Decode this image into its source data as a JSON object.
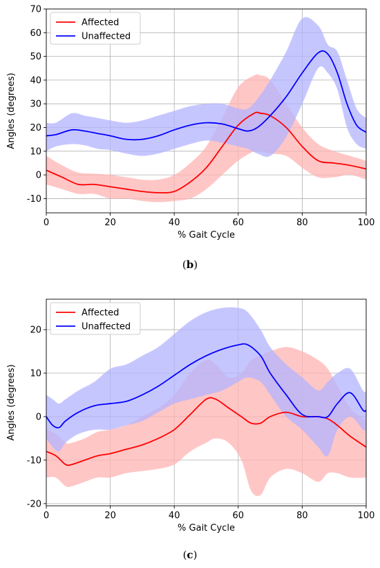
{
  "chart_data": [
    {
      "type": "line",
      "caption": "b",
      "xlabel": "% Gait Cycle",
      "ylabel": "Angles (degrees)",
      "xlim": [
        0,
        100
      ],
      "ylim": [
        -16,
        70
      ],
      "xticks": [
        0,
        20,
        40,
        60,
        80,
        100
      ],
      "yticks": [
        -10,
        0,
        10,
        20,
        30,
        40,
        50,
        60,
        70
      ],
      "grid": true,
      "legend": "top-left",
      "series": [
        {
          "name": "Affected",
          "color": "#ff0000",
          "band_color": "#ffb3b3",
          "x": [
            0,
            5,
            10,
            15,
            20,
            25,
            30,
            35,
            40,
            45,
            50,
            55,
            60,
            65,
            67,
            70,
            75,
            80,
            85,
            90,
            95,
            100
          ],
          "mean": [
            2,
            -1,
            -4,
            -4,
            -5,
            -6,
            -7,
            -7.5,
            -7,
            -3,
            3,
            12,
            21,
            26,
            26,
            25,
            20,
            12,
            6,
            5,
            4,
            2.5
          ],
          "upper": [
            8,
            4,
            1,
            0.5,
            0,
            -1,
            -2,
            -2,
            0,
            5,
            12,
            24,
            37,
            42,
            42,
            40,
            30,
            20,
            13,
            10,
            8,
            6
          ],
          "lower": [
            -4,
            -6,
            -8,
            -8,
            -10,
            -10,
            -11,
            -11.5,
            -11,
            -10,
            -6,
            0,
            6,
            10,
            10,
            9,
            8,
            3,
            -1,
            -1,
            0,
            -2
          ]
        },
        {
          "name": "Unaffected",
          "color": "#0000ff",
          "band_color": "#b3b3ff",
          "x": [
            0,
            3,
            8,
            12,
            16,
            20,
            25,
            30,
            35,
            40,
            45,
            50,
            55,
            60,
            63,
            66,
            70,
            75,
            80,
            85,
            88,
            91,
            94,
            97,
            100
          ],
          "mean": [
            16.5,
            17,
            19,
            18.5,
            17.5,
            16.5,
            15,
            15,
            16.5,
            19,
            21,
            22,
            21.5,
            19.5,
            18.5,
            20,
            25,
            33,
            43,
            51.5,
            51,
            43,
            30,
            21,
            18
          ],
          "upper": [
            22,
            22,
            26,
            25,
            24,
            23,
            22,
            23,
            25,
            27,
            29,
            30,
            30,
            28,
            28,
            32,
            40,
            52,
            66,
            63,
            55,
            52,
            40,
            28,
            24
          ],
          "lower": [
            10,
            12,
            13,
            12.5,
            11,
            10.5,
            9,
            8,
            9,
            11,
            13,
            14.5,
            13.5,
            12,
            11,
            9,
            8,
            16,
            30,
            45,
            43,
            36,
            20,
            13,
            11
          ]
        }
      ]
    },
    {
      "type": "line",
      "caption": "c",
      "xlabel": "% Gait Cycle",
      "ylabel": "Angles (degrees)",
      "xlim": [
        0,
        100
      ],
      "ylim": [
        -20.5,
        27
      ],
      "xticks": [
        0,
        20,
        40,
        60,
        80,
        100
      ],
      "yticks": [
        -20,
        -10,
        0,
        10,
        20
      ],
      "grid": true,
      "legend": "top-left",
      "series": [
        {
          "name": "Affected",
          "color": "#ff0000",
          "band_color": "#ffb3b3",
          "x": [
            0,
            3,
            6,
            8,
            12,
            16,
            20,
            25,
            30,
            35,
            40,
            45,
            50,
            53,
            57,
            61,
            64,
            67,
            70,
            75,
            80,
            85,
            88,
            91,
            95,
            100
          ],
          "mean": [
            -8,
            -9,
            -11,
            -11,
            -10,
            -9,
            -8.5,
            -7.5,
            -6.5,
            -5,
            -3,
            0.5,
            4,
            4,
            2,
            0,
            -1.5,
            -1.5,
            0,
            1,
            0,
            0,
            -0.5,
            -2,
            -4.5,
            -7
          ],
          "upper": [
            -3,
            -4,
            -6,
            -6,
            -5,
            -3.5,
            -3,
            -2,
            0,
            2,
            5,
            10,
            13,
            12,
            9,
            10,
            13,
            14,
            15,
            16,
            15,
            13,
            11,
            7,
            2,
            -1
          ],
          "lower": [
            -14,
            -14,
            -16,
            -16,
            -15,
            -14,
            -14,
            -13,
            -12.5,
            -12,
            -11,
            -8,
            -6,
            -5,
            -6,
            -10,
            -17,
            -18,
            -14,
            -12,
            -13,
            -15,
            -13,
            -13,
            -14,
            -14
          ]
        },
        {
          "name": "Unaffected",
          "color": "#0000ff",
          "band_color": "#b3b3ff",
          "x": [
            0,
            2,
            4,
            6,
            10,
            15,
            20,
            25,
            30,
            35,
            40,
            45,
            50,
            55,
            60,
            63,
            67,
            70,
            75,
            80,
            85,
            88,
            91,
            95,
            99,
            100
          ],
          "mean": [
            0,
            -2,
            -2.5,
            -1,
            1,
            2.5,
            3,
            3.5,
            5,
            7,
            9.5,
            12,
            14,
            15.5,
            16.5,
            16.5,
            14,
            10,
            5,
            0.5,
            0,
            0,
            3,
            5.5,
            1.5,
            1.5
          ],
          "upper": [
            5,
            4,
            3,
            4,
            6,
            8,
            11,
            12,
            14,
            16,
            19,
            22,
            24,
            25,
            25,
            24,
            20,
            16,
            12,
            9,
            6,
            8,
            10,
            11,
            6,
            6
          ],
          "lower": [
            -5,
            -7,
            -8,
            -6,
            -4,
            -3,
            -3,
            -2,
            -1,
            1,
            3,
            4,
            5,
            6,
            8,
            9,
            8,
            5,
            0,
            -3,
            -7,
            -9,
            -3,
            0,
            -3,
            -3
          ]
        }
      ]
    }
  ]
}
